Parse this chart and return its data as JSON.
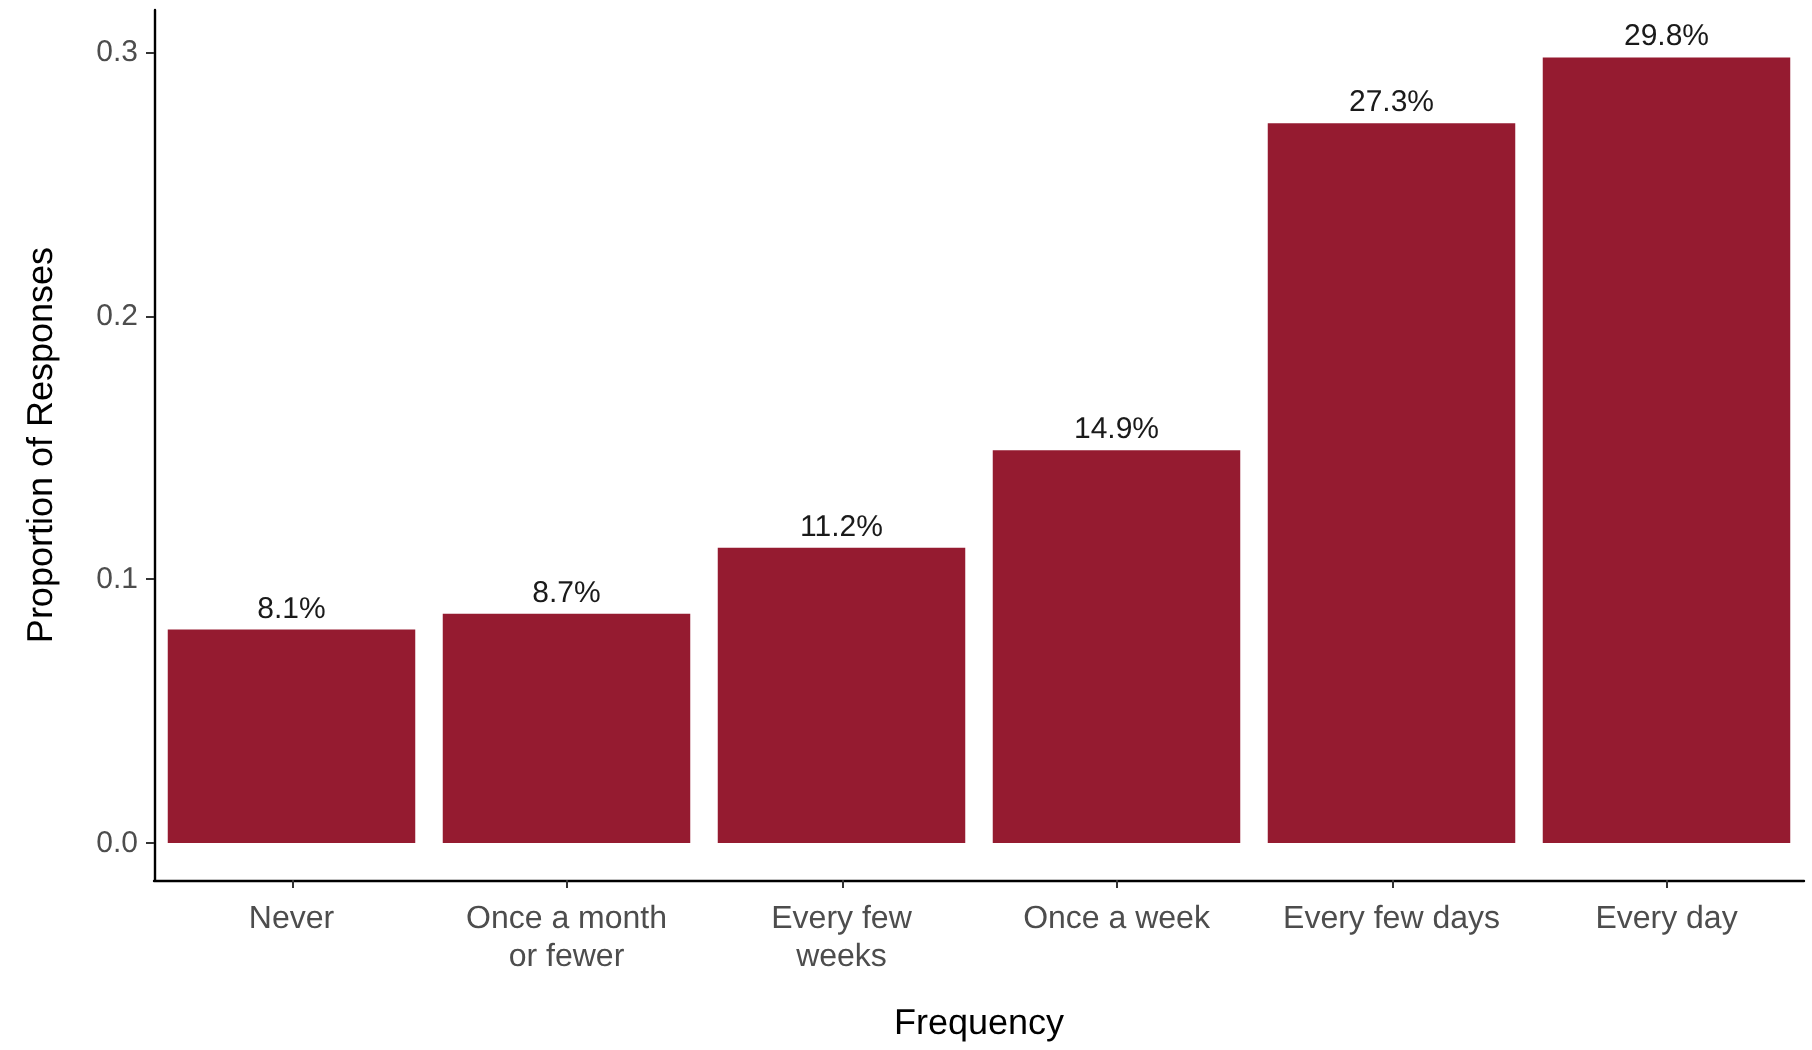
{
  "chart_data": {
    "type": "bar",
    "xlabel": "Frequency",
    "ylabel": "Proportion of Responses",
    "categories": [
      "Never",
      "Once a month\nor fewer",
      "Every few\nweeks",
      "Once a week",
      "Every few days",
      "Every day"
    ],
    "values": [
      0.081,
      0.087,
      0.112,
      0.149,
      0.273,
      0.298
    ],
    "value_labels": [
      "8.1%",
      "8.7%",
      "11.2%",
      "14.9%",
      "27.3%",
      "29.8%"
    ],
    "color": "#951b30",
    "ylim": [
      -0.014,
      0.316
    ],
    "yticks": [
      {
        "value": 0,
        "label": "0.0"
      },
      0.1,
      0.2,
      0.3
    ]
  }
}
